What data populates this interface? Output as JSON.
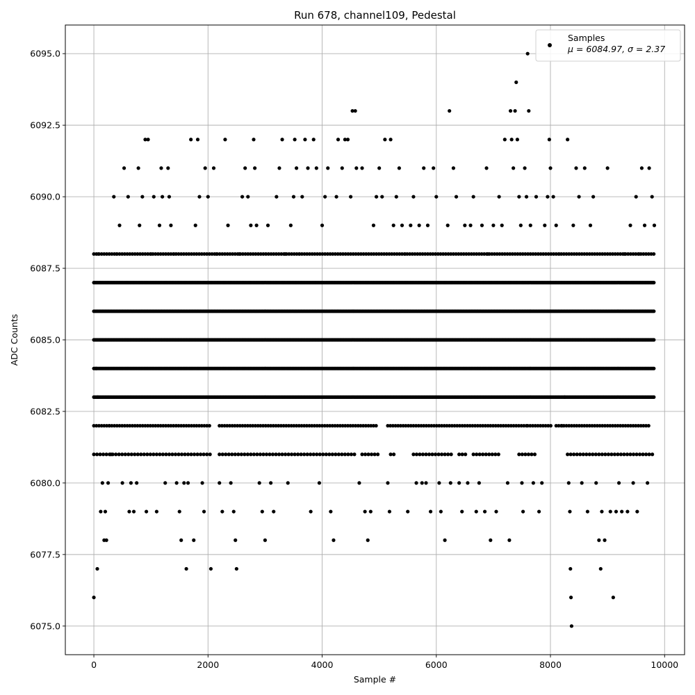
{
  "chart_data": {
    "type": "scatter",
    "title": "Run 678, channel109, Pedestal",
    "xlabel": "Sample #",
    "ylabel": "ADC Counts",
    "xlim": [
      -500,
      10350
    ],
    "ylim": [
      6074.0,
      6096.0
    ],
    "x_ticks": [
      0,
      2000,
      4000,
      6000,
      8000,
      10000
    ],
    "x_tick_labels": [
      "0",
      "2000",
      "4000",
      "6000",
      "8000",
      "10000"
    ],
    "y_ticks": [
      6075.0,
      6077.5,
      6080.0,
      6082.5,
      6085.0,
      6087.5,
      6090.0,
      6092.5,
      6095.0
    ],
    "y_tick_labels": [
      "6075.0",
      "6077.5",
      "6080.0",
      "6082.5",
      "6085.0",
      "6087.5",
      "6090.0",
      "6092.5",
      "6095.0"
    ],
    "grid": true,
    "legend": {
      "placement": "top-right",
      "label": "Samples",
      "stats": "μ = 6084.97, σ = 2.37"
    },
    "colors": {
      "marker": "#000000",
      "grid": "#b0b0b0"
    },
    "series": [
      {
        "name": "Samples",
        "points": [
          [
            0,
            6076
          ],
          [
            40,
            6084
          ],
          [
            60,
            6077
          ],
          [
            70,
            6083
          ],
          [
            80,
            6088
          ],
          [
            120,
            6079
          ],
          [
            150,
            6080
          ],
          [
            180,
            6078
          ],
          [
            200,
            6079
          ],
          [
            220,
            6078
          ],
          [
            250,
            6080
          ],
          [
            270,
            6082
          ],
          [
            300,
            6081
          ],
          [
            350,
            6090
          ],
          [
            400,
            6088
          ],
          [
            450,
            6089
          ],
          [
            500,
            6080
          ],
          [
            530,
            6091
          ],
          [
            600,
            6090
          ],
          [
            620,
            6079
          ],
          [
            650,
            6080
          ],
          [
            700,
            6079
          ],
          [
            750,
            6080
          ],
          [
            780,
            6091
          ],
          [
            800,
            6089
          ],
          [
            850,
            6090
          ],
          [
            900,
            6092
          ],
          [
            920,
            6079
          ],
          [
            950,
            6092
          ],
          [
            1000,
            6088
          ],
          [
            1050,
            6090
          ],
          [
            1100,
            6079
          ],
          [
            1150,
            6089
          ],
          [
            1180,
            6091
          ],
          [
            1200,
            6090
          ],
          [
            1250,
            6080
          ],
          [
            1300,
            6091
          ],
          [
            1320,
            6090
          ],
          [
            1350,
            6089
          ],
          [
            1400,
            6088
          ],
          [
            1450,
            6080
          ],
          [
            1500,
            6079
          ],
          [
            1530,
            6078
          ],
          [
            1580,
            6080
          ],
          [
            1620,
            6077
          ],
          [
            1650,
            6080
          ],
          [
            1700,
            6092
          ],
          [
            1750,
            6078
          ],
          [
            1780,
            6089
          ],
          [
            1820,
            6092
          ],
          [
            1850,
            6090
          ],
          [
            1900,
            6080
          ],
          [
            1930,
            6079
          ],
          [
            1950,
            6091
          ],
          [
            2000,
            6090
          ],
          [
            2050,
            6077
          ],
          [
            2100,
            6091
          ],
          [
            2150,
            6088
          ],
          [
            2200,
            6080
          ],
          [
            2250,
            6079
          ],
          [
            2300,
            6092
          ],
          [
            2350,
            6089
          ],
          [
            2400,
            6080
          ],
          [
            2450,
            6079
          ],
          [
            2480,
            6078
          ],
          [
            2500,
            6077
          ],
          [
            2550,
            6088
          ],
          [
            2600,
            6090
          ],
          [
            2650,
            6091
          ],
          [
            2700,
            6090
          ],
          [
            2750,
            6089
          ],
          [
            2800,
            6092
          ],
          [
            2820,
            6091
          ],
          [
            2850,
            6089
          ],
          [
            2900,
            6080
          ],
          [
            2950,
            6079
          ],
          [
            3000,
            6078
          ],
          [
            3050,
            6089
          ],
          [
            3100,
            6080
          ],
          [
            3150,
            6079
          ],
          [
            3200,
            6090
          ],
          [
            3250,
            6091
          ],
          [
            3300,
            6092
          ],
          [
            3350,
            6088
          ],
          [
            3400,
            6080
          ],
          [
            3450,
            6089
          ],
          [
            3500,
            6090
          ],
          [
            3520,
            6092
          ],
          [
            3550,
            6091
          ],
          [
            3600,
            6088
          ],
          [
            3650,
            6090
          ],
          [
            3700,
            6092
          ],
          [
            3750,
            6091
          ],
          [
            3800,
            6079
          ],
          [
            3850,
            6092
          ],
          [
            3900,
            6091
          ],
          [
            3950,
            6080
          ],
          [
            4000,
            6089
          ],
          [
            4050,
            6090
          ],
          [
            4100,
            6091
          ],
          [
            4150,
            6079
          ],
          [
            4200,
            6078
          ],
          [
            4250,
            6090
          ],
          [
            4280,
            6092
          ],
          [
            4350,
            6091
          ],
          [
            4400,
            6092
          ],
          [
            4450,
            6092
          ],
          [
            4500,
            6090
          ],
          [
            4530,
            6093
          ],
          [
            4580,
            6093
          ],
          [
            4600,
            6091
          ],
          [
            4650,
            6080
          ],
          [
            4700,
            6091
          ],
          [
            4750,
            6079
          ],
          [
            4800,
            6078
          ],
          [
            4850,
            6079
          ],
          [
            4900,
            6089
          ],
          [
            4950,
            6090
          ],
          [
            5000,
            6091
          ],
          [
            5050,
            6090
          ],
          [
            5100,
            6092
          ],
          [
            5150,
            6080
          ],
          [
            5180,
            6079
          ],
          [
            5200,
            6092
          ],
          [
            5250,
            6089
          ],
          [
            5300,
            6090
          ],
          [
            5350,
            6091
          ],
          [
            5400,
            6089
          ],
          [
            5450,
            6088
          ],
          [
            5500,
            6079
          ],
          [
            5550,
            6089
          ],
          [
            5600,
            6090
          ],
          [
            5650,
            6080
          ],
          [
            5700,
            6089
          ],
          [
            5750,
            6080
          ],
          [
            5780,
            6091
          ],
          [
            5820,
            6080
          ],
          [
            5850,
            6089
          ],
          [
            5900,
            6079
          ],
          [
            5950,
            6091
          ],
          [
            6000,
            6090
          ],
          [
            6050,
            6080
          ],
          [
            6080,
            6079
          ],
          [
            6150,
            6078
          ],
          [
            6200,
            6089
          ],
          [
            6230,
            6093
          ],
          [
            6250,
            6080
          ],
          [
            6300,
            6091
          ],
          [
            6350,
            6090
          ],
          [
            6400,
            6080
          ],
          [
            6450,
            6079
          ],
          [
            6500,
            6089
          ],
          [
            6550,
            6080
          ],
          [
            6600,
            6089
          ],
          [
            6650,
            6090
          ],
          [
            6700,
            6079
          ],
          [
            6750,
            6080
          ],
          [
            6800,
            6089
          ],
          [
            6850,
            6079
          ],
          [
            6880,
            6091
          ],
          [
            6900,
            6088
          ],
          [
            6950,
            6078
          ],
          [
            7000,
            6089
          ],
          [
            7050,
            6079
          ],
          [
            7100,
            6090
          ],
          [
            7150,
            6089
          ],
          [
            7200,
            6092
          ],
          [
            7250,
            6080
          ],
          [
            7280,
            6078
          ],
          [
            7300,
            6093
          ],
          [
            7320,
            6092
          ],
          [
            7350,
            6091
          ],
          [
            7380,
            6093
          ],
          [
            7400,
            6094
          ],
          [
            7420,
            6092
          ],
          [
            7450,
            6090
          ],
          [
            7480,
            6089
          ],
          [
            7500,
            6080
          ],
          [
            7520,
            6079
          ],
          [
            7550,
            6091
          ],
          [
            7580,
            6090
          ],
          [
            7600,
            6095
          ],
          [
            7620,
            6093
          ],
          [
            7650,
            6089
          ],
          [
            7700,
            6080
          ],
          [
            7750,
            6090
          ],
          [
            7800,
            6079
          ],
          [
            7850,
            6080
          ],
          [
            7900,
            6089
          ],
          [
            7950,
            6090
          ],
          [
            7980,
            6092
          ],
          [
            8000,
            6091
          ],
          [
            8050,
            6090
          ],
          [
            8100,
            6089
          ],
          [
            8150,
            6088
          ],
          [
            8200,
            6082
          ],
          [
            8250,
            6083
          ],
          [
            8300,
            6092
          ],
          [
            8320,
            6080
          ],
          [
            8340,
            6079
          ],
          [
            8350,
            6077
          ],
          [
            8360,
            6076
          ],
          [
            8370,
            6075
          ],
          [
            8400,
            6089
          ],
          [
            8450,
            6091
          ],
          [
            8500,
            6090
          ],
          [
            8550,
            6080
          ],
          [
            8600,
            6091
          ],
          [
            8650,
            6079
          ],
          [
            8700,
            6089
          ],
          [
            8750,
            6090
          ],
          [
            8800,
            6080
          ],
          [
            8850,
            6078
          ],
          [
            8880,
            6077
          ],
          [
            8900,
            6079
          ],
          [
            8950,
            6078
          ],
          [
            9000,
            6091
          ],
          [
            9050,
            6079
          ],
          [
            9100,
            6076
          ],
          [
            9150,
            6079
          ],
          [
            9200,
            6080
          ],
          [
            9250,
            6079
          ],
          [
            9300,
            6088
          ],
          [
            9350,
            6079
          ],
          [
            9400,
            6089
          ],
          [
            9450,
            6080
          ],
          [
            9500,
            6090
          ],
          [
            9520,
            6079
          ],
          [
            9550,
            6088
          ],
          [
            9600,
            6091
          ],
          [
            9650,
            6089
          ],
          [
            9700,
            6080
          ],
          [
            9730,
            6091
          ],
          [
            9780,
            6090
          ],
          [
            9820,
            6089
          ]
        ]
      }
    ]
  }
}
